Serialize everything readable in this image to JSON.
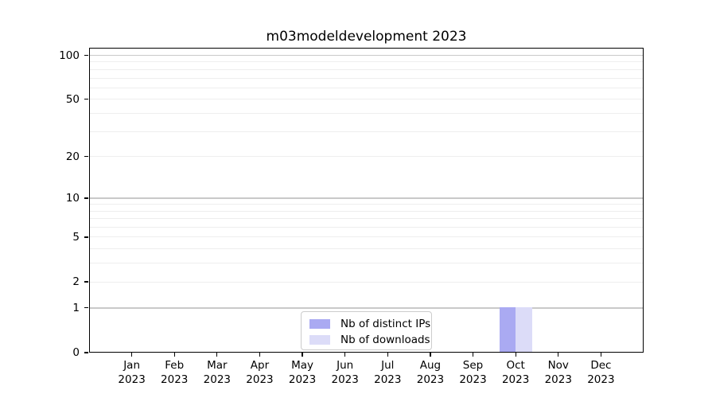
{
  "title": "m03modeldevelopment 2023",
  "chart_data": {
    "type": "bar",
    "title": "m03modeldevelopment 2023",
    "categories": [
      "Jan 2023",
      "Feb 2023",
      "Mar 2023",
      "Apr 2023",
      "May 2023",
      "Jun 2023",
      "Jul 2023",
      "Aug 2023",
      "Sep 2023",
      "Oct 2023",
      "Nov 2023",
      "Dec 2023"
    ],
    "series": [
      {
        "name": "Nb of distinct IPs",
        "color": "#aaaaf2",
        "values": [
          0,
          0,
          0,
          0,
          0,
          0,
          0,
          0,
          0,
          1,
          0,
          0
        ]
      },
      {
        "name": "Nb of downloads",
        "color": "#dcdcf8",
        "values": [
          0,
          0,
          0,
          0,
          0,
          0,
          0,
          0,
          0,
          1,
          0,
          0
        ]
      }
    ],
    "xlabel": "",
    "ylabel": "",
    "yscale": "log1p",
    "ylim": [
      0,
      112.6
    ],
    "ytick_values": [
      100,
      50,
      20,
      10,
      5,
      2,
      1,
      0
    ],
    "ytick_labels": [
      "100",
      "50",
      "20",
      "10",
      "5",
      "2",
      "1",
      "0"
    ],
    "major_grid_values": [
      100,
      10,
      1
    ],
    "minor_grid_values": [
      90,
      80,
      70,
      60,
      50,
      40,
      30,
      20,
      9,
      8,
      7,
      6,
      5,
      4,
      3,
      2
    ],
    "grid": "on",
    "legend_position": "lower-center-inside"
  },
  "legend": {
    "items": [
      {
        "label": "Nb of distinct IPs",
        "color": "#aaaaf2"
      },
      {
        "label": "Nb of downloads",
        "color": "#dcdcf8"
      }
    ]
  }
}
